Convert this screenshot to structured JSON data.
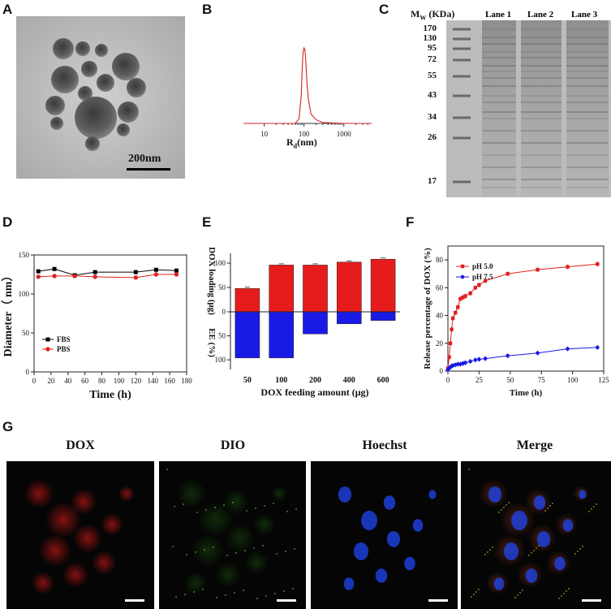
{
  "panel_labels": {
    "A": "A",
    "B": "B",
    "C": "C",
    "D": "D",
    "E": "E",
    "F": "F",
    "G": "G"
  },
  "panel_a": {
    "scale_bar": "200nm"
  },
  "panel_b": {
    "xlabel_main": "R",
    "xlabel_sub": "d",
    "xlabel_unit": "(nm)",
    "chart_data": {
      "type": "line",
      "xscale": "log",
      "xticks": [
        "10",
        "100",
        "1000"
      ],
      "x": [
        3,
        30,
        60,
        75,
        85,
        90,
        95,
        100,
        105,
        110,
        115,
        120,
        130,
        150,
        200,
        300,
        1000,
        5000
      ],
      "y": [
        0,
        0,
        0,
        5,
        30,
        60,
        78,
        82,
        80,
        70,
        55,
        40,
        25,
        10,
        4,
        1,
        0,
        0
      ]
    }
  },
  "panel_c": {
    "mw_label": "M",
    "mw_sub": "W",
    "mw_unit": "(KDa)",
    "lanes": [
      "Lane 1",
      "Lane 2",
      "Lane 3"
    ],
    "markers": [
      "170",
      "130",
      "95",
      "72",
      "55",
      "43",
      "34",
      "26",
      "17"
    ]
  },
  "panel_d": {
    "chart_data": {
      "type": "line",
      "xlabel": "Time (h)",
      "ylabel": "Diameter（ nm）",
      "xlim": [
        0,
        180
      ],
      "ylim": [
        0,
        150
      ],
      "xticks": [
        "0",
        "20",
        "40",
        "60",
        "80",
        "100",
        "120",
        "140",
        "160",
        "180"
      ],
      "yticks": [
        "0",
        "50",
        "100",
        "150"
      ],
      "legend": "center-left",
      "series": [
        {
          "name": "FBS",
          "color": "#000000",
          "x": [
            5,
            24,
            48,
            72,
            120,
            144,
            168
          ],
          "y": [
            129,
            132,
            124,
            128,
            128,
            131,
            130
          ]
        },
        {
          "name": "PBS",
          "color": "#e02020",
          "x": [
            5,
            24,
            48,
            72,
            120,
            144,
            168
          ],
          "y": [
            122,
            123,
            123,
            122,
            121,
            125,
            125
          ]
        }
      ]
    }
  },
  "panel_e": {
    "chart_data": {
      "type": "bar",
      "xlabel": "DOX feeding amount (μg)",
      "ylabel_top": "DOX loading (μg)",
      "ylabel_bottom": "EE (%)",
      "categories": [
        "50",
        "100",
        "200",
        "400",
        "600"
      ],
      "yticks_top": [
        "0",
        "50",
        "100"
      ],
      "yticks_bottom": [
        "50",
        "100"
      ],
      "series": [
        {
          "name": "DOX loading",
          "color": "#e61c1c",
          "values": [
            48,
            96,
            96,
            102,
            108
          ]
        },
        {
          "name": "EE",
          "color": "#1a1ae6",
          "values": [
            96,
            96,
            46,
            25,
            18
          ]
        }
      ]
    }
  },
  "panel_f": {
    "chart_data": {
      "type": "line",
      "xlabel": "Time (h)",
      "ylabel": "Release percentage of DOX (%)",
      "xlim": [
        0,
        125
      ],
      "ylim": [
        0,
        90
      ],
      "xticks": [
        "0",
        "25",
        "50",
        "75",
        "100",
        "125"
      ],
      "yticks": [
        "0",
        "20",
        "40",
        "60",
        "80"
      ],
      "legend": "top-left",
      "series": [
        {
          "name": "pH 5.0",
          "color": "#e02020",
          "x": [
            0,
            1,
            2,
            3,
            4,
            6,
            8,
            10,
            12,
            14,
            18,
            22,
            25,
            30,
            48,
            72,
            96,
            120
          ],
          "y": [
            2,
            10,
            20,
            30,
            38,
            42,
            46,
            52,
            53,
            54,
            56,
            60,
            62,
            65,
            70,
            73,
            75,
            77
          ]
        },
        {
          "name": "pH 7.5",
          "color": "#1a1ae6",
          "x": [
            0,
            1,
            2,
            3,
            4,
            6,
            8,
            10,
            12,
            14,
            18,
            22,
            25,
            30,
            48,
            72,
            96,
            120
          ],
          "y": [
            1,
            2,
            3,
            3.5,
            4,
            4.5,
            5,
            5,
            5.5,
            6,
            7,
            8,
            8.5,
            9,
            11,
            13,
            16,
            17
          ]
        }
      ]
    }
  },
  "panel_g": {
    "titles": [
      "DOX",
      "DIO",
      "Hoechst",
      "Merge"
    ]
  }
}
